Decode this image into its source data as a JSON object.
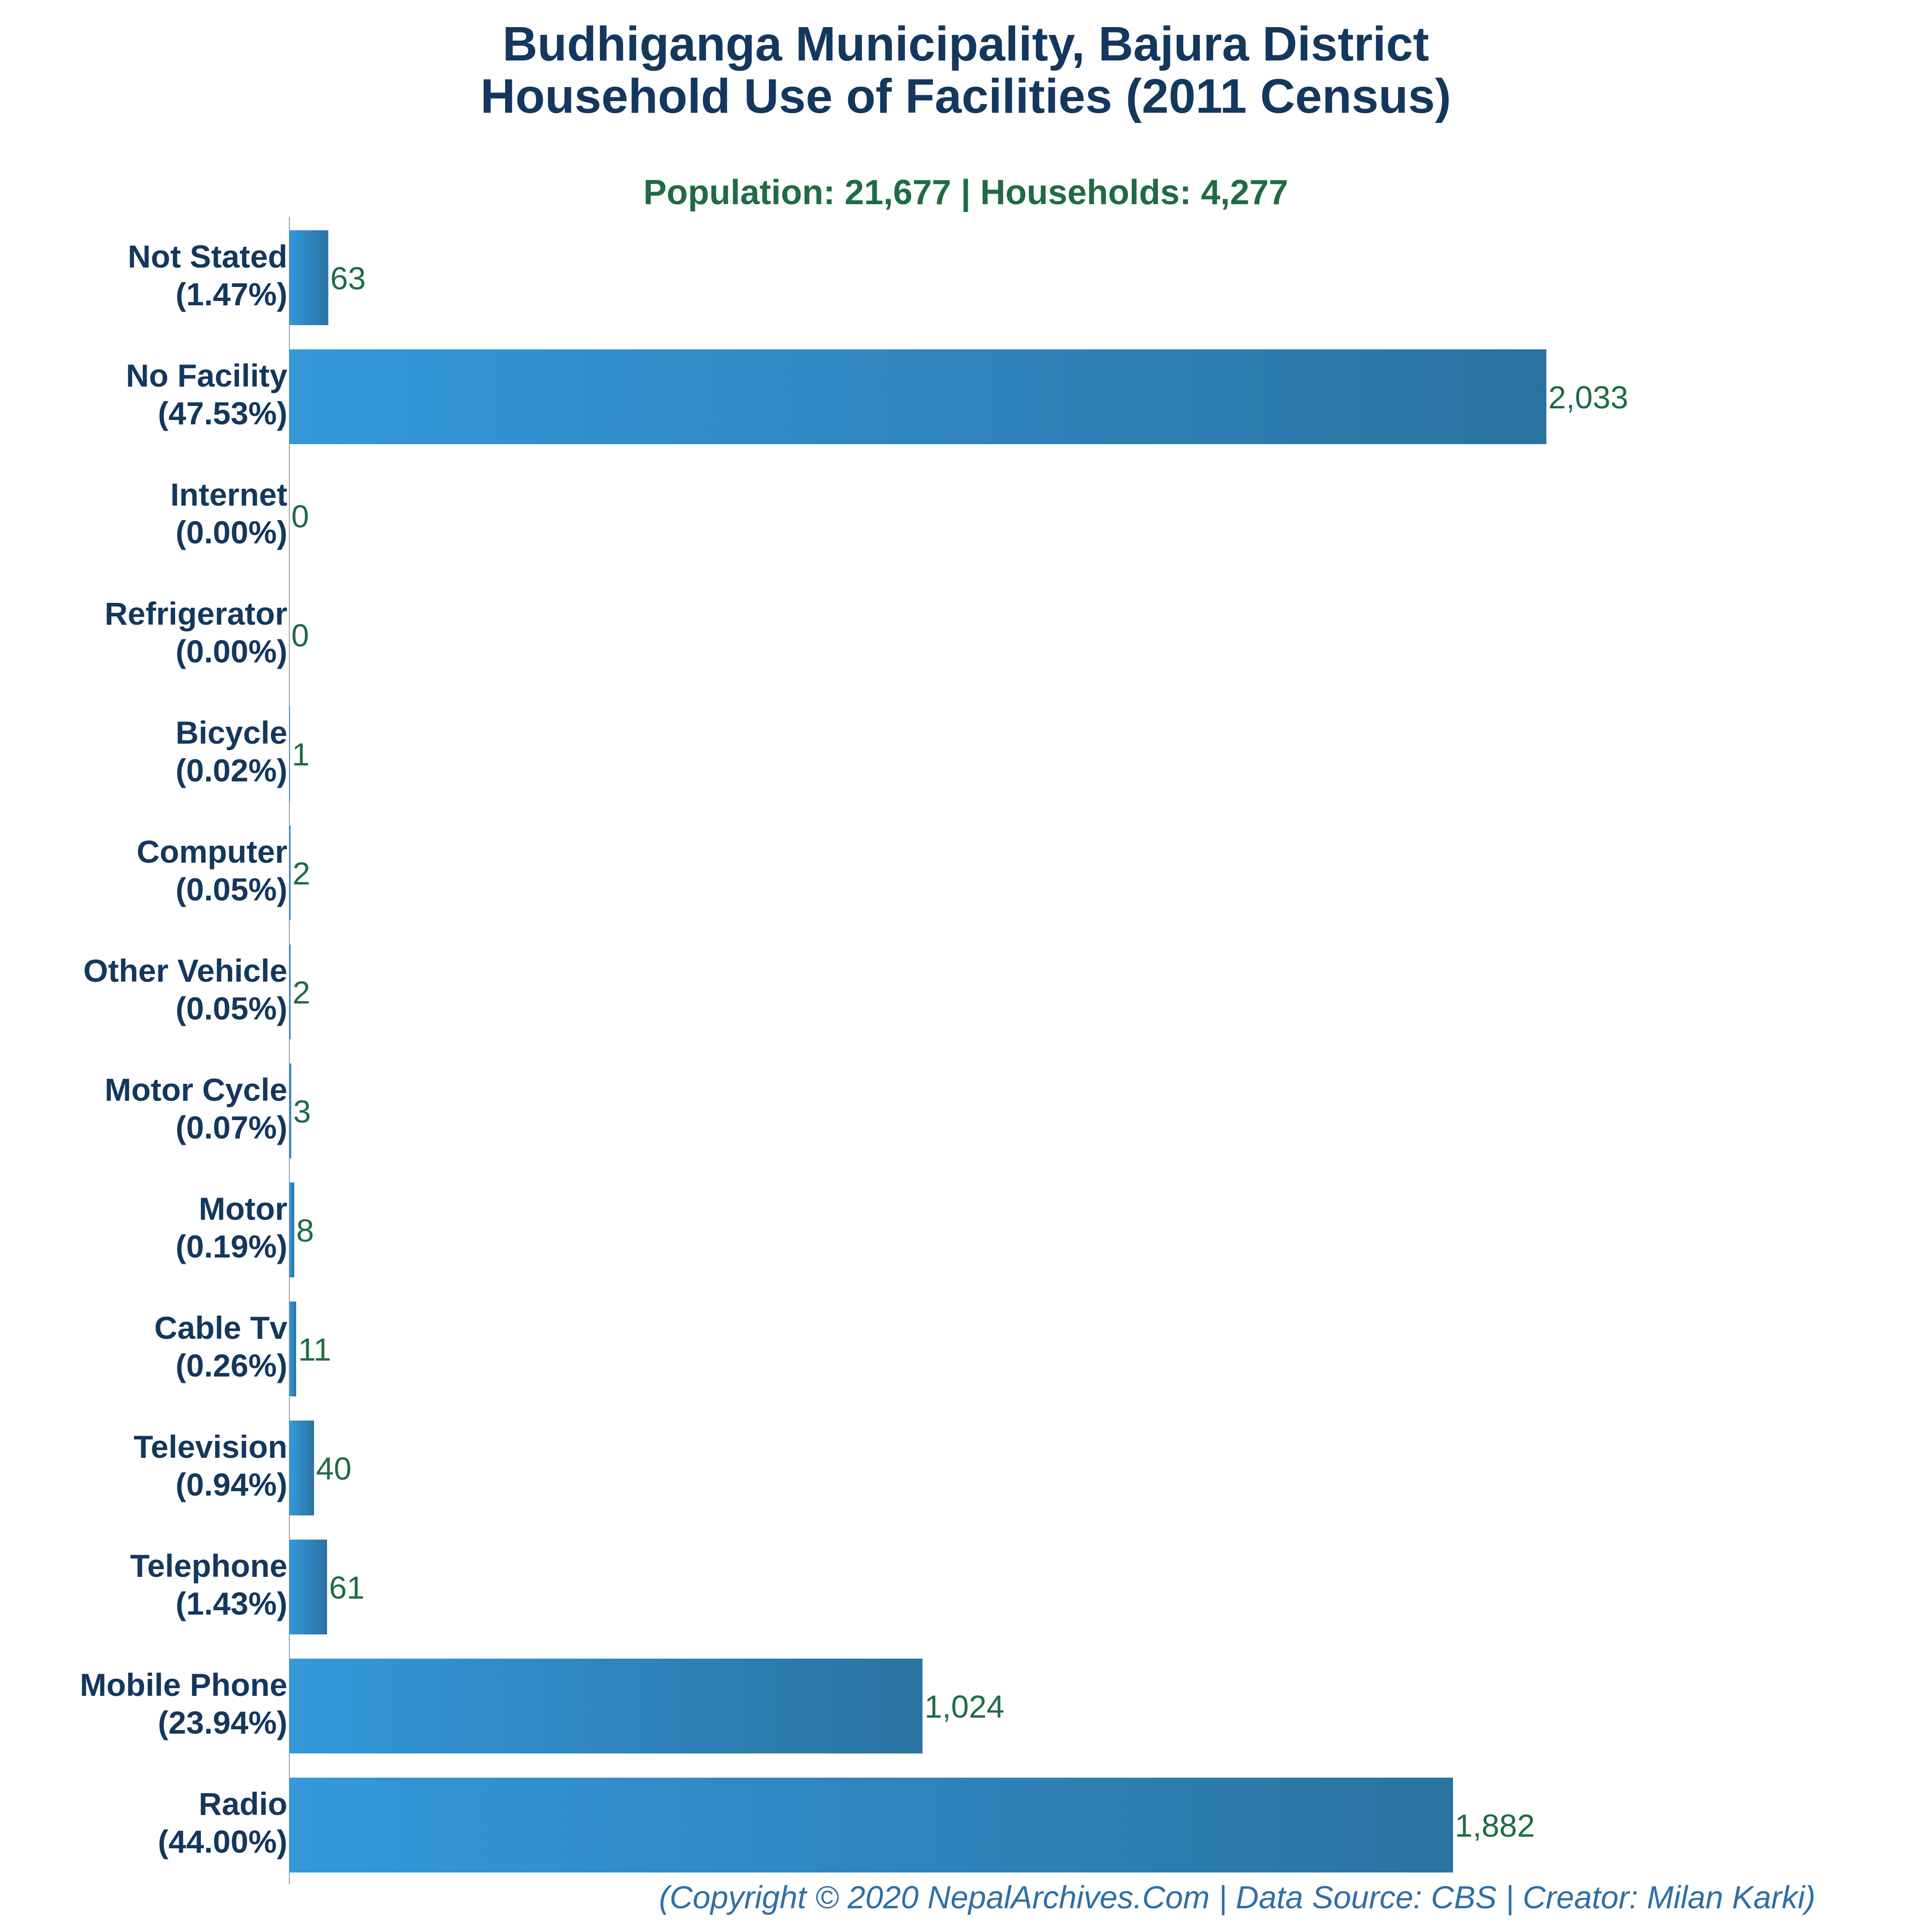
{
  "chart_data": {
    "type": "bar",
    "orientation": "horizontal",
    "title_lines": [
      "Budhiganga Municipality, Bajura District",
      "Household Use of Facilities (2011 Census)"
    ],
    "subtitle": "Population: 21,677 | Households: 4,277",
    "categories": [
      "Not Stated",
      "No Facility",
      "Internet",
      "Refrigerator",
      "Bicycle",
      "Computer",
      "Other Vehicle",
      "Motor Cycle",
      "Motor",
      "Cable Tv",
      "Television",
      "Telephone",
      "Mobile Phone",
      "Radio"
    ],
    "percentages": [
      "(1.47%)",
      "(47.53%)",
      "(0.00%)",
      "(0.00%)",
      "(0.02%)",
      "(0.05%)",
      "(0.05%)",
      "(0.07%)",
      "(0.19%)",
      "(0.26%)",
      "(0.94%)",
      "(1.43%)",
      "(23.94%)",
      "(44.00%)"
    ],
    "values": [
      63,
      2033,
      0,
      0,
      1,
      2,
      2,
      3,
      8,
      11,
      40,
      61,
      1024,
      1882
    ],
    "value_labels": [
      "63",
      "2,033",
      "0",
      "0",
      "1",
      "2",
      "2",
      "3",
      "8",
      "11",
      "40",
      "61",
      "1,024",
      "1,882"
    ],
    "xlim": [
      0,
      2200
    ],
    "grid": false,
    "colors": {
      "bar_light": "#3498db",
      "bar_dark": "#2a73a1",
      "title": "#14375e",
      "subtitle": "#1f6b45",
      "value": "#1f6b45",
      "footer": "#2f6fa6"
    }
  },
  "footer": "(Copyright © 2020 NepalArchives.Com | Data Source: CBS | Creator: Milan Karki)"
}
